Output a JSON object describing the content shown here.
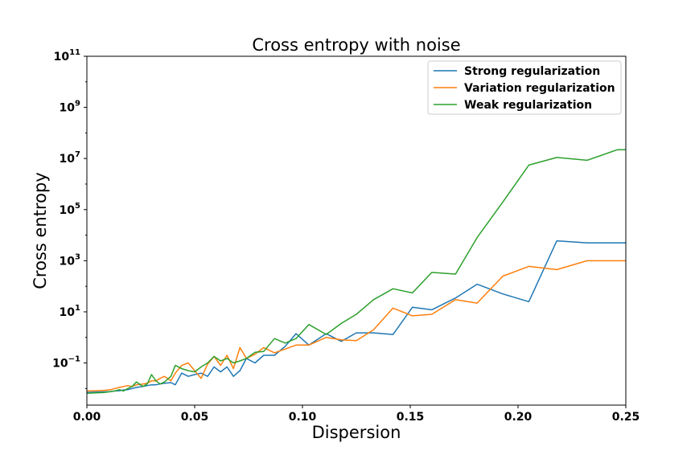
{
  "chart_data": {
    "type": "line",
    "title": "Cross entropy with noise",
    "xlabel": "Dispersion",
    "ylabel": "Cross entropy",
    "xlim": [
      0.0,
      0.25
    ],
    "ylim_log10": [
      -2.65,
      11
    ],
    "yscale": "log",
    "grid": false,
    "legend_position": "top-right",
    "x_ticks": [
      "0.00",
      "0.05",
      "0.10",
      "0.15",
      "0.20",
      "0.25"
    ],
    "x_tick_values": [
      0,
      0.05,
      0.1,
      0.15,
      0.2,
      0.25
    ],
    "y_ticks": [
      {
        "base": "10",
        "exp": "−1",
        "log": -1
      },
      {
        "base": "10",
        "exp": "1",
        "log": 1
      },
      {
        "base": "10",
        "exp": "3",
        "log": 3
      },
      {
        "base": "10",
        "exp": "5",
        "log": 5
      },
      {
        "base": "10",
        "exp": "7",
        "log": 7
      },
      {
        "base": "10",
        "exp": "9",
        "log": 9
      },
      {
        "base": "10",
        "exp": "11",
        "log": 11
      }
    ],
    "x": [
      0.0,
      0.004,
      0.008,
      0.011,
      0.013,
      0.015,
      0.017,
      0.019,
      0.021,
      0.023,
      0.026,
      0.028,
      0.03,
      0.032,
      0.034,
      0.036,
      0.039,
      0.041,
      0.044,
      0.047,
      0.05,
      0.053,
      0.056,
      0.059,
      0.062,
      0.065,
      0.068,
      0.071,
      0.074,
      0.078,
      0.082,
      0.087,
      0.092,
      0.097,
      0.103,
      0.111,
      0.118,
      0.125,
      0.133,
      0.142,
      0.151,
      0.16,
      0.171,
      0.181,
      0.193,
      0.205,
      0.218,
      0.232,
      0.246,
      0.25
    ],
    "series": [
      {
        "name": "Strong regularization",
        "color": "#1f77b4",
        "values": [
          0.007,
          0.0072,
          0.0074,
          0.0076,
          0.008,
          0.0082,
          0.0088,
          0.009,
          0.01,
          0.011,
          0.012,
          0.013,
          0.014,
          0.014,
          0.015,
          0.016,
          0.017,
          0.014,
          0.04,
          0.03,
          0.035,
          0.04,
          0.03,
          0.07,
          0.045,
          0.07,
          0.03,
          0.05,
          0.15,
          0.1,
          0.2,
          0.2,
          0.45,
          1.4,
          0.5,
          1.4,
          0.7,
          1.5,
          1.5,
          1.3,
          15,
          12,
          35,
          120,
          50,
          25,
          6000,
          5000,
          5000,
          5000
        ]
      },
      {
        "name": "Variation regularization",
        "color": "#ff7f0e",
        "values": [
          0.008,
          0.0082,
          0.0085,
          0.009,
          0.01,
          0.011,
          0.012,
          0.013,
          0.012,
          0.014,
          0.015,
          0.016,
          0.02,
          0.02,
          0.025,
          0.03,
          0.02,
          0.04,
          0.08,
          0.1,
          0.05,
          0.025,
          0.09,
          0.18,
          0.08,
          0.2,
          0.06,
          0.4,
          0.15,
          0.22,
          0.4,
          0.25,
          0.35,
          0.5,
          0.5,
          1.0,
          0.8,
          0.75,
          2.0,
          14,
          7,
          8,
          30,
          22,
          250,
          600,
          450,
          1000,
          1000,
          1000
        ]
      },
      {
        "name": "Weak regularization",
        "color": "#2ca02c",
        "values": [
          0.0065,
          0.0068,
          0.007,
          0.0075,
          0.008,
          0.009,
          0.008,
          0.01,
          0.012,
          0.018,
          0.012,
          0.015,
          0.035,
          0.02,
          0.015,
          0.018,
          0.03,
          0.08,
          0.06,
          0.05,
          0.045,
          0.07,
          0.1,
          0.18,
          0.12,
          0.15,
          0.1,
          0.12,
          0.15,
          0.26,
          0.28,
          0.9,
          0.6,
          0.9,
          3.2,
          1.3,
          3.5,
          8,
          30,
          80,
          55,
          350,
          300,
          8000,
          200000,
          5500000,
          11000000,
          8500000,
          22000000,
          22000000
        ]
      }
    ]
  }
}
